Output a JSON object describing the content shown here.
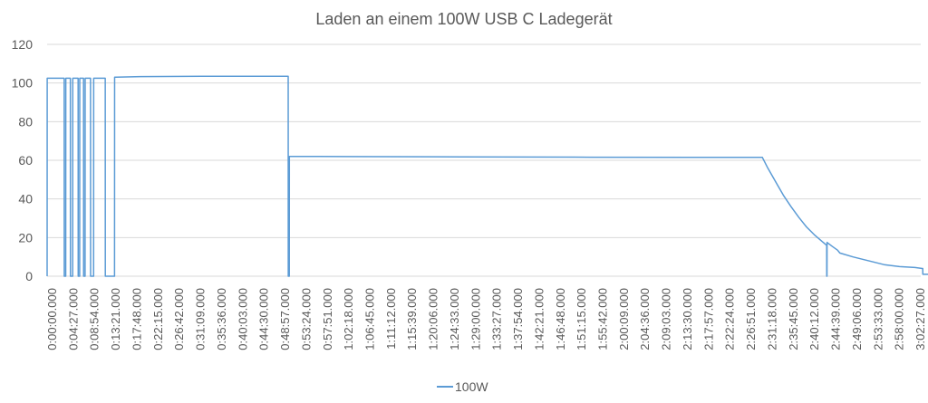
{
  "chart_data": {
    "type": "line",
    "title": "Laden an einem 100W USB C Ladegerät",
    "xlabel": "",
    "ylabel": "",
    "ylim": [
      0,
      120
    ],
    "yticks": [
      "0",
      "20",
      "40",
      "60",
      "80",
      "100",
      "120"
    ],
    "x_tick_labels": [
      "0:00:00.000",
      "0:04:27.000",
      "0:08:54.000",
      "0:13:21.000",
      "0:17:48.000",
      "0:22:15.000",
      "0:26:42.000",
      "0:31:09.000",
      "0:35:36.000",
      "0:40:03.000",
      "0:44:30.000",
      "0:48:57.000",
      "0:53:24.000",
      "0:57:51.000",
      "1:02:18.000",
      "1:06:45.000",
      "1:11:12.000",
      "1:15:39.000",
      "1:20:06.000",
      "1:24:33.000",
      "1:29:00.000",
      "1:33:27.000",
      "1:37:54.000",
      "1:42:21.000",
      "1:46:48.000",
      "1:51:15.000",
      "1:55:42.000",
      "2:00:09.000",
      "2:04:36.000",
      "2:09:03.000",
      "2:13:30.000",
      "2:17:57.000",
      "2:22:24.000",
      "2:26:51.000",
      "2:31:18.000",
      "2:35:45.000",
      "2:40:12.000",
      "2:44:39.000",
      "2:49:06.000",
      "2:53:33.000",
      "2:58:00.000",
      "3:02:27.000"
    ],
    "x_range_seconds": [
      0,
      11274
    ],
    "grid": true,
    "legend_position": "bottom",
    "color": "#5b9bd5",
    "series": [
      {
        "name": "100W",
        "points": [
          [
            0,
            0
          ],
          [
            1,
            102.5
          ],
          [
            220,
            102.5
          ],
          [
            221,
            0
          ],
          [
            240,
            0
          ],
          [
            241,
            102.5
          ],
          [
            300,
            102.5
          ],
          [
            301,
            0
          ],
          [
            330,
            0
          ],
          [
            331,
            102.5
          ],
          [
            400,
            102.5
          ],
          [
            401,
            0
          ],
          [
            420,
            0
          ],
          [
            421,
            102.5
          ],
          [
            470,
            102.5
          ],
          [
            471,
            0
          ],
          [
            490,
            0
          ],
          [
            491,
            102.5
          ],
          [
            560,
            102.5
          ],
          [
            561,
            0
          ],
          [
            600,
            0
          ],
          [
            601,
            102.5
          ],
          [
            750,
            102.5
          ],
          [
            751,
            0
          ],
          [
            870,
            0
          ],
          [
            871,
            103
          ],
          [
            1200,
            103.3
          ],
          [
            2000,
            103.5
          ],
          [
            3100,
            103.5
          ],
          [
            3111,
            103.5
          ],
          [
            3112,
            0
          ],
          [
            3125,
            0
          ],
          [
            3126,
            62
          ],
          [
            3500,
            62
          ],
          [
            5000,
            61.8
          ],
          [
            7000,
            61.6
          ],
          [
            9000,
            61.5
          ],
          [
            9230,
            61.5
          ],
          [
            9300,
            56
          ],
          [
            9400,
            49
          ],
          [
            9500,
            42
          ],
          [
            9600,
            36
          ],
          [
            9700,
            30.5
          ],
          [
            9800,
            25.5
          ],
          [
            9900,
            21.5
          ],
          [
            10000,
            18
          ],
          [
            10060,
            16
          ],
          [
            10061,
            0
          ],
          [
            10064,
            0
          ],
          [
            10065,
            17.5
          ],
          [
            10130,
            15.5
          ],
          [
            10200,
            13.5
          ],
          [
            10230,
            12
          ],
          [
            10400,
            10
          ],
          [
            10600,
            8
          ],
          [
            10800,
            6
          ],
          [
            11000,
            5
          ],
          [
            11200,
            4.5
          ],
          [
            11295,
            4
          ],
          [
            11300,
            4
          ],
          [
            11301,
            1
          ],
          [
            11570,
            1
          ]
        ]
      }
    ]
  }
}
